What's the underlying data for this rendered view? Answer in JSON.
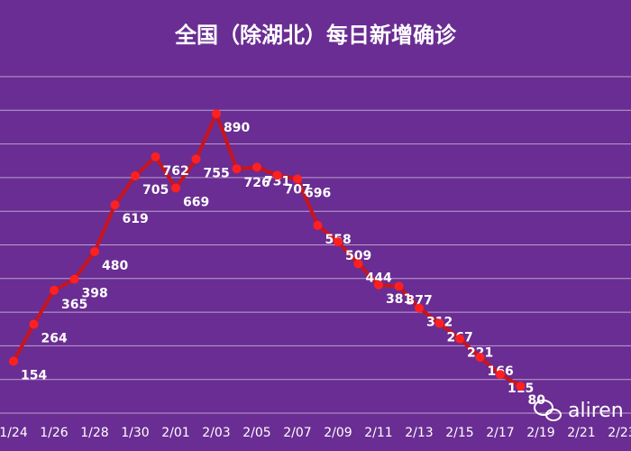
{
  "chart_data": {
    "type": "line",
    "title": "全国（除湖北）每日新增确诊",
    "categories": [
      "1/24",
      null,
      "1/26",
      null,
      "1/28",
      null,
      "1/30",
      null,
      "2/01",
      null,
      "2/03",
      null,
      "2/05",
      null,
      "2/07",
      null,
      "2/09",
      null,
      "2/11",
      null,
      "2/13",
      null,
      "2/15",
      null,
      "2/17",
      null,
      "2/19",
      null,
      "2/21",
      null,
      "2/23"
    ],
    "series": [
      {
        "name": "每日新增确诊",
        "color": "#c8141e",
        "marker_color": "#ff2020",
        "values": [
          154,
          264,
          365,
          398,
          480,
          619,
          705,
          762,
          669,
          755,
          890,
          726,
          731,
          707,
          696,
          558,
          509,
          444,
          381,
          377,
          312,
          267,
          221,
          166,
          115,
          80,
          null,
          null,
          null,
          null,
          null
        ]
      }
    ],
    "ylim": [
      0,
      1000
    ],
    "yticks": [
      0,
      100,
      200,
      300,
      400,
      500,
      600,
      700,
      800,
      900,
      1000
    ],
    "grid": true,
    "watermark": "aliren"
  }
}
